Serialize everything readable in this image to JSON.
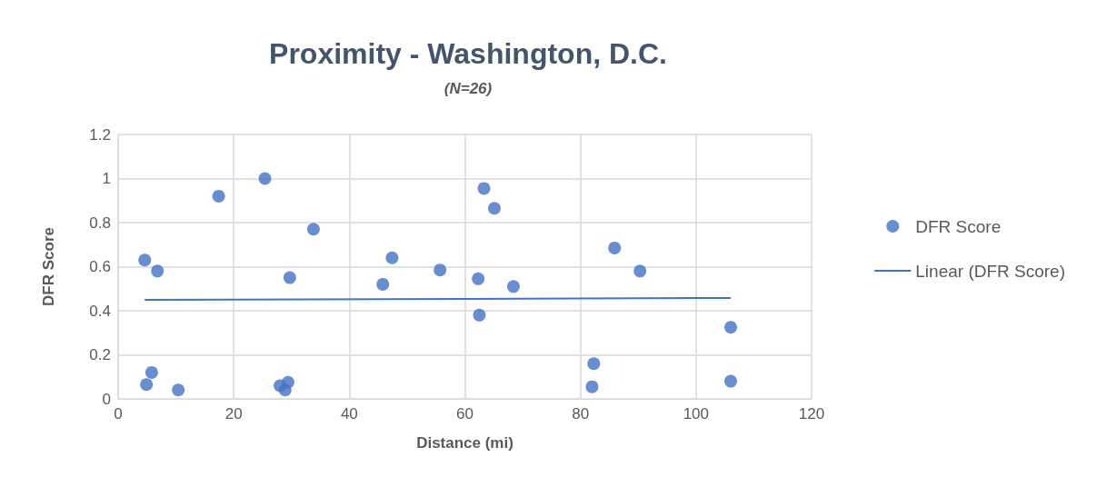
{
  "chart_data": {
    "type": "scatter",
    "title": "Proximity - Washington, D.C.",
    "subtitle": "(N=26)",
    "xlabel": "Distance (mi)",
    "ylabel": "DFR Score",
    "xlim": [
      0,
      120
    ],
    "xticks": [
      0,
      20,
      40,
      60,
      80,
      100,
      120
    ],
    "ylim": [
      0,
      1.2
    ],
    "yticks": [
      0,
      0.2,
      0.4,
      0.6,
      0.8,
      1,
      1.2
    ],
    "grid": true,
    "legend": "right",
    "series": [
      {
        "name": "DFR Score",
        "marker": "circle",
        "color": "#4472c4",
        "x": [
          4.6,
          6.8,
          5.8,
          4.9,
          10.4,
          17.4,
          25.4,
          33.8,
          29.7,
          28,
          29.4,
          28.9,
          45.8,
          47.4,
          55.7,
          62.3,
          63.3,
          65.1,
          62.5,
          68.4,
          85.9,
          90.3,
          82.3,
          82,
          106,
          106
        ],
        "values": [
          0.63,
          0.58,
          0.12,
          0.065,
          0.04,
          0.92,
          1.0,
          0.77,
          0.55,
          0.06,
          0.075,
          0.04,
          0.52,
          0.64,
          0.585,
          0.545,
          0.955,
          0.865,
          0.38,
          0.51,
          0.685,
          0.58,
          0.16,
          0.055,
          0.325,
          0.08
        ]
      },
      {
        "name": "Linear (DFR Score)",
        "type": "line",
        "marker": "none",
        "color": "#4472c4",
        "x": [
          4.6,
          106
        ],
        "values": [
          0.449,
          0.458
        ]
      }
    ]
  }
}
